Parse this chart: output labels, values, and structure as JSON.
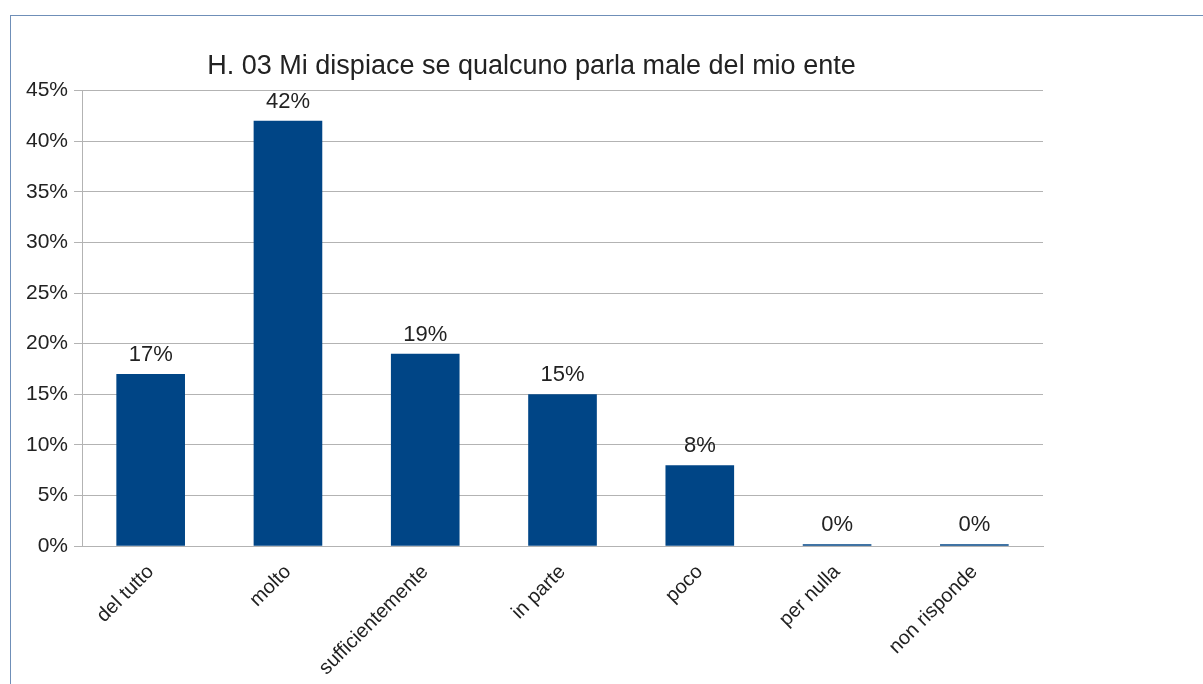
{
  "chart_data": {
    "type": "bar",
    "title": "H. 03 Mi dispiace se qualcuno parla male del mio ente",
    "categories": [
      "del tutto",
      "molto",
      "sufficientemente",
      "in parte",
      "poco",
      "per nulla",
      "non risponde"
    ],
    "values": [
      17,
      42,
      19,
      15,
      8,
      0,
      0
    ],
    "value_labels": [
      "17%",
      "42%",
      "19%",
      "15%",
      "8%",
      "0%",
      "0%"
    ],
    "color": "#004586",
    "ylim": [
      0,
      45
    ],
    "yticks": [
      {
        "value": 0,
        "label": "0%"
      },
      {
        "value": 5,
        "label": "5%"
      },
      {
        "value": 10,
        "label": "10%"
      },
      {
        "value": 15,
        "label": "15%"
      },
      {
        "value": 20,
        "label": "20%"
      },
      {
        "value": 25,
        "label": "25%"
      },
      {
        "value": 30,
        "label": "30%"
      },
      {
        "value": 35,
        "label": "35%"
      },
      {
        "value": 40,
        "label": "40%"
      },
      {
        "value": 45,
        "label": "45%"
      }
    ],
    "grid": "y",
    "legend": false
  }
}
